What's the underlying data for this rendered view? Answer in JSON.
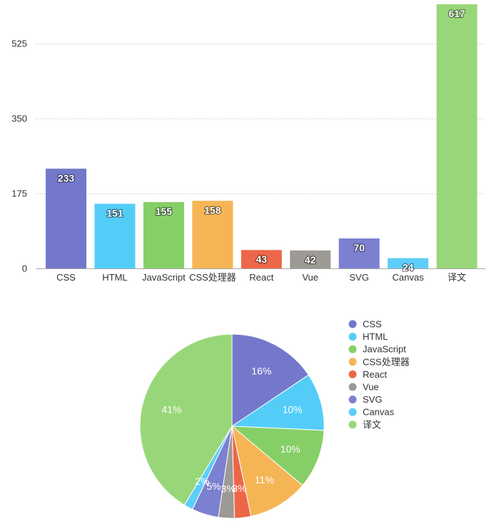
{
  "chart_data": [
    {
      "type": "bar",
      "categories": [
        "CSS",
        "HTML",
        "JavaScript",
        "CSS处理器",
        "React",
        "Vue",
        "SVG",
        "Canvas",
        "译文"
      ],
      "values": [
        233,
        151,
        155,
        158,
        43,
        42,
        70,
        24,
        617
      ],
      "colors": [
        "#7378cb",
        "#53cdf8",
        "#86cf67",
        "#f6b555",
        "#ec6749",
        "#9d9994",
        "#7b80d0",
        "#5ccef9",
        "#98d779"
      ],
      "yticks": [
        0,
        175,
        350,
        525
      ],
      "ylim": [
        0,
        617
      ],
      "grid": true,
      "grid_style": "dotted"
    },
    {
      "type": "pie",
      "categories": [
        "CSS",
        "HTML",
        "JavaScript",
        "CSS处理器",
        "React",
        "Vue",
        "SVG",
        "Canvas",
        "译文"
      ],
      "values": [
        233,
        151,
        155,
        158,
        43,
        42,
        70,
        24,
        617
      ],
      "percent_labels": [
        "16%",
        "10%",
        "10%",
        "11%",
        "3%",
        "3%",
        "5%",
        "2%",
        "41%"
      ],
      "colors": [
        "#7378cb",
        "#53cdf8",
        "#86cf67",
        "#f6b555",
        "#ec6749",
        "#9d9994",
        "#7b80d0",
        "#5ccef9",
        "#98d779"
      ],
      "legend_position": "top-right"
    }
  ]
}
